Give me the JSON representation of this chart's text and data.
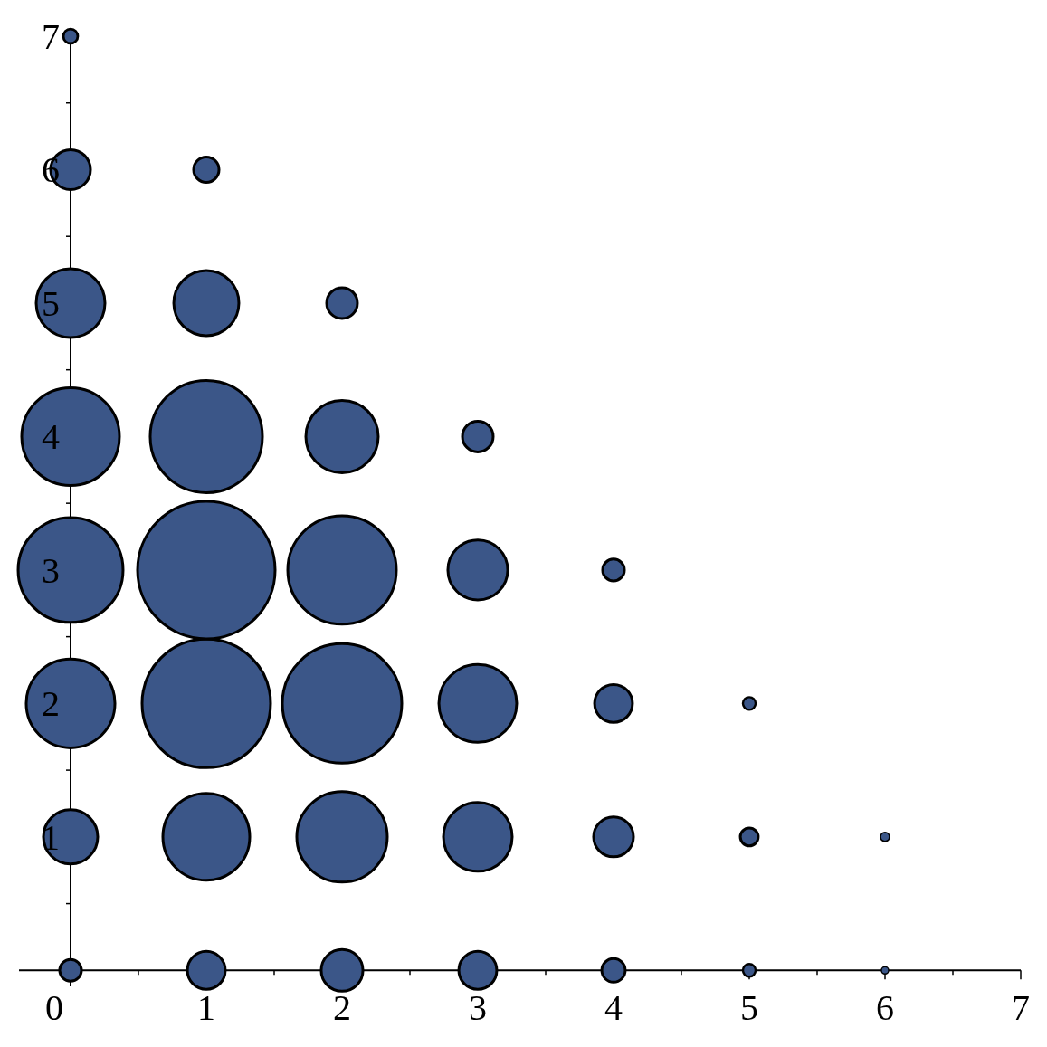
{
  "chart_data": {
    "type": "bubble",
    "x": [
      0,
      1,
      2,
      3,
      4,
      5,
      6,
      0,
      1,
      2,
      3,
      4,
      5,
      6,
      0,
      1,
      2,
      3,
      4,
      5,
      0,
      1,
      2,
      3,
      4,
      0,
      1,
      2,
      3,
      0,
      1,
      2,
      0,
      1,
      0
    ],
    "values": [
      0,
      0,
      0,
      0,
      0,
      0,
      0,
      1,
      1,
      1,
      1,
      1,
      1,
      1,
      2,
      2,
      2,
      2,
      2,
      2,
      3,
      3,
      3,
      3,
      3,
      4,
      4,
      4,
      4,
      5,
      5,
      5,
      6,
      6,
      7
    ],
    "sizes": [
      0.025,
      0.076,
      0.092,
      0.076,
      0.029,
      0.0085,
      0.0028,
      0.156,
      0.399,
      0.433,
      0.25,
      0.084,
      0.017,
      0.0043,
      0.416,
      0.873,
      0.754,
      0.32,
      0.076,
      0.0085,
      0.582,
      1,
      0.623,
      0.189,
      0.025,
      0.505,
      0.666,
      0.277,
      0.05,
      0.25,
      0.224,
      0.05,
      0.084,
      0.034,
      0.011
    ],
    "color": "#3b5688",
    "xlim": [
      -0.38,
      7
    ],
    "ylim": [
      -0.12,
      7
    ],
    "xticks": [
      0,
      {
        "value": 0.5,
        "label": null
      },
      1,
      {
        "value": 1.5,
        "label": null
      },
      2,
      {
        "value": 2.5,
        "label": null
      },
      3,
      {
        "value": 3.5,
        "label": null
      },
      4,
      {
        "value": 4.5,
        "label": null
      },
      5,
      {
        "value": 5.5,
        "label": null
      },
      6,
      {
        "value": 6.5,
        "label": null
      },
      7
    ],
    "yticks": [
      {
        "value": 0.5,
        "label": null
      },
      1,
      {
        "value": 1.5,
        "label": null
      },
      2,
      {
        "value": 2.5,
        "label": null
      },
      3,
      {
        "value": 3.5,
        "label": null
      },
      4,
      {
        "value": 4.5,
        "label": null
      },
      5,
      {
        "value": 5.5,
        "label": null
      },
      6,
      {
        "value": 6.5,
        "label": null
      },
      7
    ],
    "grid": false
  }
}
